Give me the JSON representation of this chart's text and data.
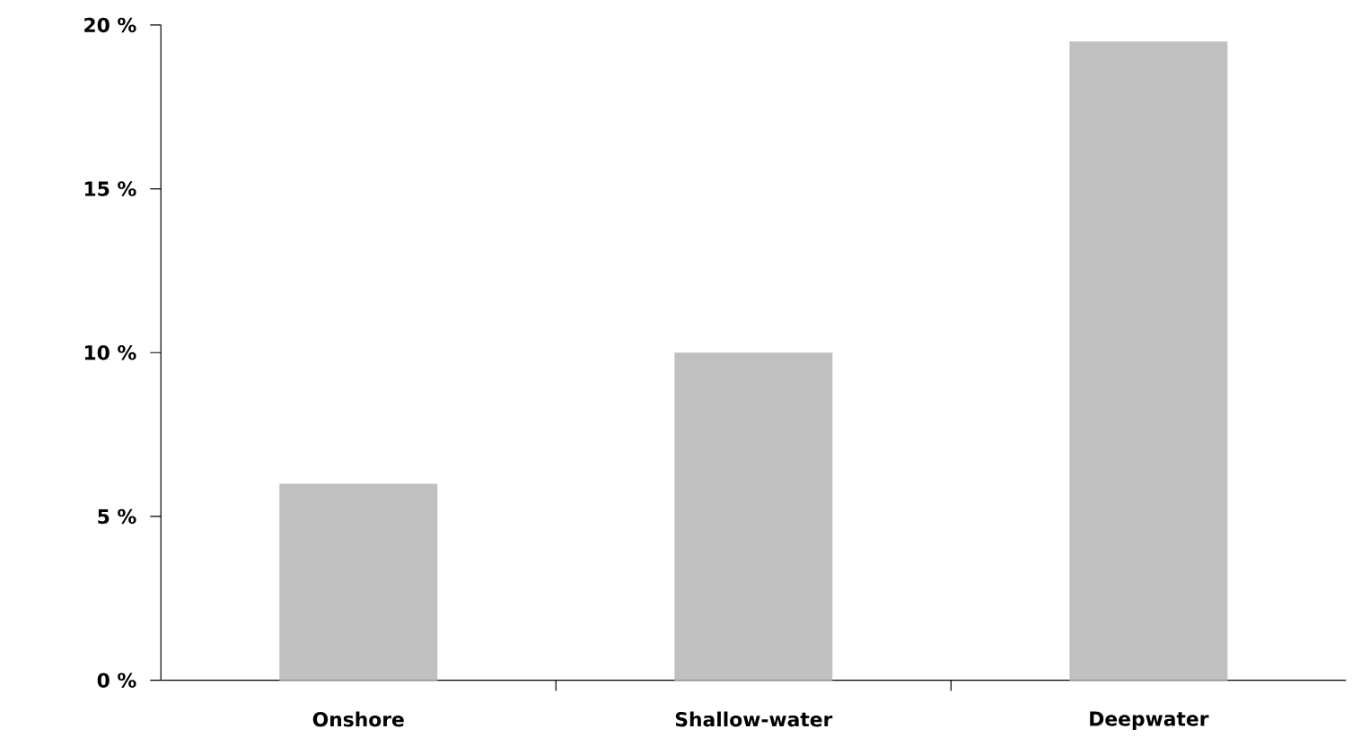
{
  "chart_data": {
    "type": "bar",
    "categories": [
      "Onshore",
      "Shallow-water",
      "Deepwater"
    ],
    "values": [
      6,
      10,
      19.5
    ],
    "color": "#c0c0c0",
    "ylim": [
      0,
      20
    ],
    "yticks": [
      {
        "value": 0,
        "label": "0 %"
      },
      {
        "value": 5,
        "label": "5 %"
      },
      {
        "value": 10,
        "label": "10 %"
      },
      {
        "value": 15,
        "label": "15 %"
      },
      {
        "value": 20,
        "label": "20 %"
      }
    ],
    "grid": false
  }
}
